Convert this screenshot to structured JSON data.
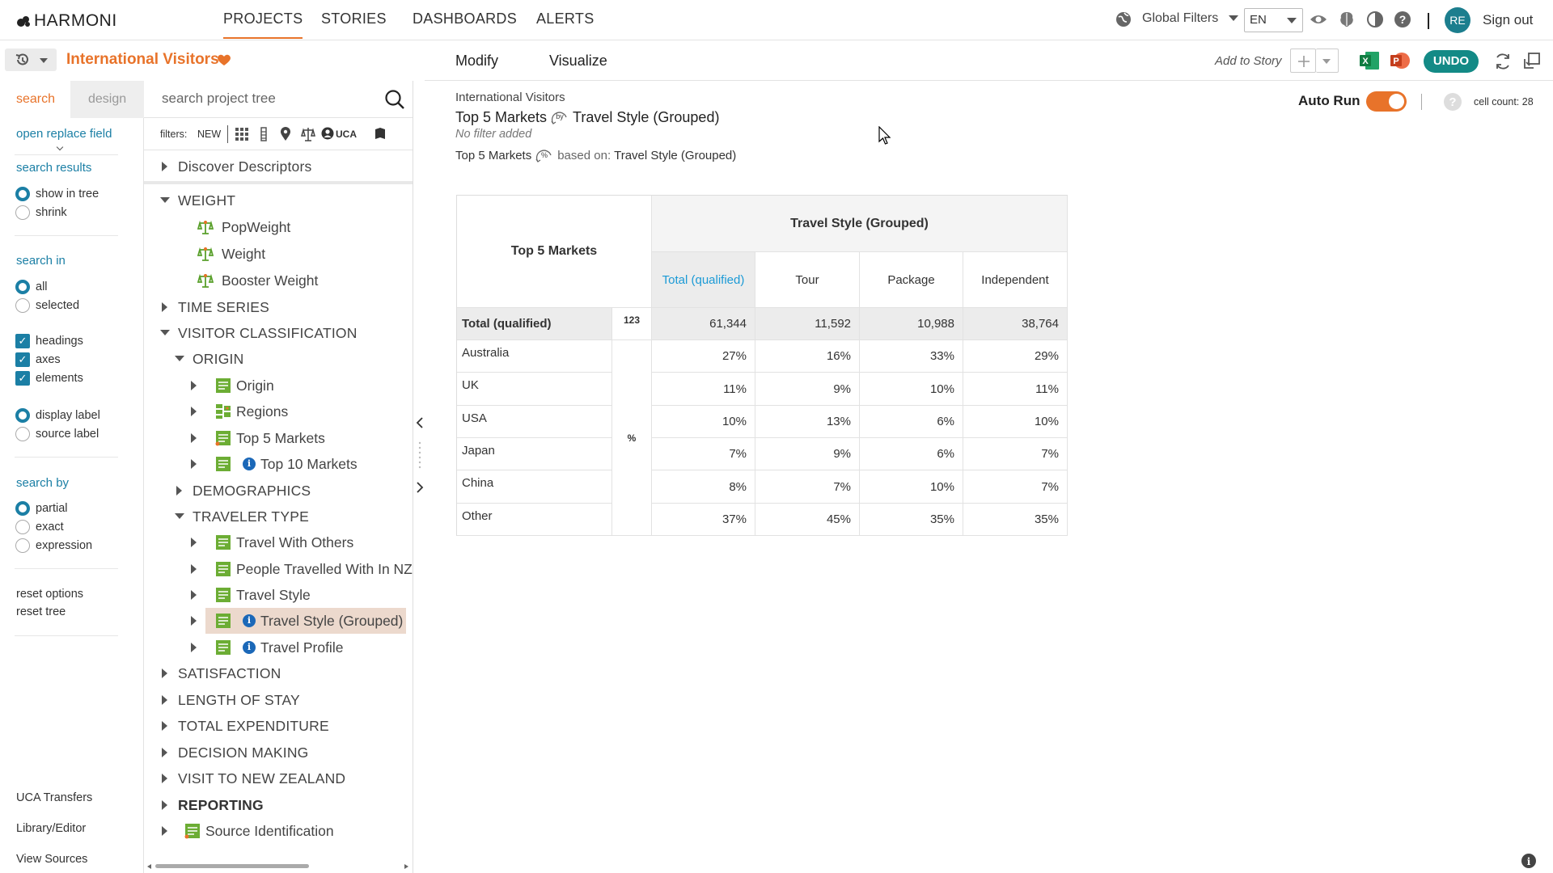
{
  "brand": {
    "name": "HARMONI"
  },
  "nav": {
    "tabs": [
      {
        "label": "PROJECTS",
        "active": true
      },
      {
        "label": "STORIES"
      },
      {
        "label": "DASHBOARDS"
      },
      {
        "label": "ALERTS"
      }
    ],
    "global_filters": "Global Filters",
    "language": "EN",
    "user_initials": "RE",
    "sign_out": "Sign out"
  },
  "project": {
    "title": "International Visitors"
  },
  "options": {
    "tabs": {
      "search": "search",
      "design": "design"
    },
    "open_replace": "open replace field",
    "search_results": {
      "heading": "search results",
      "show_in_tree": "show in tree",
      "shrink": "shrink"
    },
    "search_in": {
      "heading": "search in",
      "all": "all",
      "selected": "selected"
    },
    "types": {
      "headings": "headings",
      "axes": "axes",
      "elements": "elements"
    },
    "label": {
      "display": "display label",
      "source": "source label"
    },
    "search_by": {
      "heading": "search by",
      "partial": "partial",
      "exact": "exact",
      "expression": "expression"
    },
    "reset_options": "reset options",
    "reset_tree": "reset tree",
    "footer": {
      "uca_transfers": "UCA Transfers",
      "library_editor": "Library/Editor",
      "view_sources": "View Sources"
    }
  },
  "tree": {
    "search_placeholder": "search project tree",
    "filters_label": "filters:",
    "filters_new": "NEW",
    "filters_uca": "UCA",
    "items": [
      {
        "label": "Discover Descriptors"
      },
      {
        "label": "WEIGHT"
      },
      {
        "label": "PopWeight"
      },
      {
        "label": "Weight"
      },
      {
        "label": "Booster Weight"
      },
      {
        "label": "TIME SERIES"
      },
      {
        "label": "VISITOR CLASSIFICATION"
      },
      {
        "label": "ORIGIN"
      },
      {
        "label": "Origin"
      },
      {
        "label": "Regions"
      },
      {
        "label": "Top 5 Markets"
      },
      {
        "label": "Top 10 Markets"
      },
      {
        "label": "DEMOGRAPHICS"
      },
      {
        "label": "TRAVELER TYPE"
      },
      {
        "label": "Travel With Others"
      },
      {
        "label": "People Travelled With In NZ"
      },
      {
        "label": "Travel Style"
      },
      {
        "label": "Travel Style (Grouped)"
      },
      {
        "label": "Travel Profile"
      },
      {
        "label": "SATISFACTION"
      },
      {
        "label": "LENGTH OF STAY"
      },
      {
        "label": "TOTAL EXPENDITURE"
      },
      {
        "label": "DECISION MAKING"
      },
      {
        "label": "VISIT TO NEW ZEALAND"
      },
      {
        "label": "REPORTING"
      },
      {
        "label": "Source Identification"
      }
    ]
  },
  "toolbar": {
    "modify": "Modify",
    "visualize": "Visualize",
    "add_to_story": "Add to Story",
    "undo": "UNDO"
  },
  "report": {
    "project_name": "International Visitors",
    "row_var": "Top 5 Markets",
    "by_glyph": "by",
    "col_var": "Travel Style (Grouped)",
    "no_filter": "No filter added",
    "pct_glyph": "%",
    "based_on": "based on:",
    "base_var": "Travel Style (Grouped)",
    "auto_run": "Auto Run",
    "cell_count": "cell count: 28"
  },
  "table": {
    "corner_label": "Top 5 Markets",
    "col_group": "Travel Style (Grouped)",
    "columns": [
      "Total (qualified)",
      "Tour",
      "Package",
      "Independent"
    ],
    "total_row": {
      "label": "Total (qualified)",
      "stat": "123",
      "values": [
        "61,344",
        "11,592",
        "10,988",
        "38,764"
      ]
    },
    "stat_label": "%",
    "rows": [
      {
        "label": "Australia",
        "values": [
          "27%",
          "16%",
          "33%",
          "29%"
        ]
      },
      {
        "label": "UK",
        "values": [
          "11%",
          "9%",
          "10%",
          "11%"
        ]
      },
      {
        "label": "USA",
        "values": [
          "10%",
          "13%",
          "6%",
          "10%"
        ]
      },
      {
        "label": "Japan",
        "values": [
          "7%",
          "9%",
          "6%",
          "7%"
        ]
      },
      {
        "label": "China",
        "values": [
          "8%",
          "7%",
          "10%",
          "7%"
        ]
      },
      {
        "label": "Other",
        "values": [
          "37%",
          "45%",
          "35%",
          "35%"
        ]
      }
    ]
  },
  "colors": {
    "accent": "#e8732a",
    "link": "#1b7fa5",
    "teal": "#138a86"
  }
}
